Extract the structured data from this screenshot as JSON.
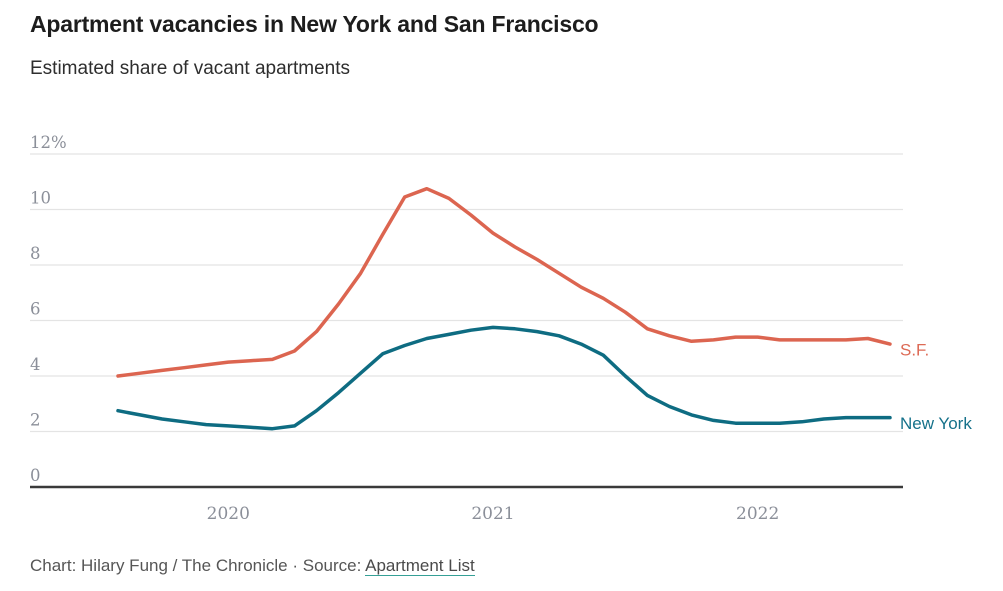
{
  "header": {
    "title": "Apartment vacancies in New York and San Francisco",
    "subtitle": "Estimated share of vacant apartments"
  },
  "footer": {
    "credit_prefix": "Chart: Hilary Fung / The Chronicle · Source: ",
    "source_link_label": "Apartment List"
  },
  "colors": {
    "sf_line": "#dc6550",
    "sf_label": "#dd6a55",
    "ny_line": "#0e6c82",
    "ny_label": "#15718a",
    "gridline": "#e4e4e4",
    "baseline": "#3a3a3a",
    "tick_text": "#8b8f99",
    "title_text": "#1d1d1d"
  },
  "chart_data": {
    "type": "line",
    "title": "Apartment vacancies in New York and San Francisco",
    "subtitle": "Estimated share of vacant apartments",
    "ylabel": "Estimated share of vacant apartments (%)",
    "xlabel": "",
    "ylim": [
      0,
      12
    ],
    "grid": "horizontal",
    "legend_position": "end-of-line-labels",
    "x": [
      "Aug 2019",
      "Sep 2019",
      "Oct 2019",
      "Nov 2019",
      "Dec 2019",
      "Jan 2020",
      "Feb 2020",
      "Mar 2020",
      "Apr 2020",
      "May 2020",
      "Jun 2020",
      "Jul 2020",
      "Aug 2020",
      "Sep 2020",
      "Oct 2020",
      "Nov 2020",
      "Dec 2020",
      "Jan 2021",
      "Feb 2021",
      "Mar 2021",
      "Apr 2021",
      "May 2021",
      "Jun 2021",
      "Jul 2021",
      "Aug 2021",
      "Sep 2021",
      "Oct 2021",
      "Nov 2021",
      "Dec 2021",
      "Jan 2022",
      "Feb 2022",
      "Mar 2022",
      "Apr 2022",
      "May 2022",
      "Jun 2022",
      "Jul 2022"
    ],
    "series": [
      {
        "name": "S.F.",
        "color": "#dc6550",
        "label_color": "#dd6a55",
        "values": [
          4.0,
          4.1,
          4.2,
          4.3,
          4.4,
          4.5,
          4.55,
          4.6,
          4.9,
          5.6,
          6.6,
          7.7,
          9.1,
          10.45,
          10.75,
          10.4,
          9.8,
          9.15,
          8.65,
          8.2,
          7.7,
          7.2,
          6.8,
          6.3,
          5.7,
          5.45,
          5.25,
          5.3,
          5.4,
          5.4,
          5.3,
          5.3,
          5.3,
          5.3,
          5.35,
          5.15
        ]
      },
      {
        "name": "New York",
        "color": "#0e6c82",
        "label_color": "#15718a",
        "values": [
          2.75,
          2.6,
          2.45,
          2.35,
          2.25,
          2.2,
          2.15,
          2.1,
          2.2,
          2.75,
          3.4,
          4.1,
          4.8,
          5.1,
          5.35,
          5.5,
          5.65,
          5.75,
          5.7,
          5.6,
          5.45,
          5.15,
          4.75,
          4.0,
          3.3,
          2.9,
          2.6,
          2.4,
          2.3,
          2.3,
          2.3,
          2.35,
          2.45,
          2.5,
          2.5,
          2.5
        ]
      }
    ],
    "y_ticks": [
      {
        "value": 0,
        "label": "0"
      },
      {
        "value": 2,
        "label": "2"
      },
      {
        "value": 4,
        "label": "4"
      },
      {
        "value": 6,
        "label": "6"
      },
      {
        "value": 8,
        "label": "8"
      },
      {
        "value": 10,
        "label": "10"
      },
      {
        "value": 12,
        "label": "12%"
      }
    ],
    "x_ticks": [
      {
        "month": "Jan 2020",
        "label": "2020"
      },
      {
        "month": "Jan 2021",
        "label": "2021"
      },
      {
        "month": "Jan 2022",
        "label": "2022"
      }
    ]
  }
}
